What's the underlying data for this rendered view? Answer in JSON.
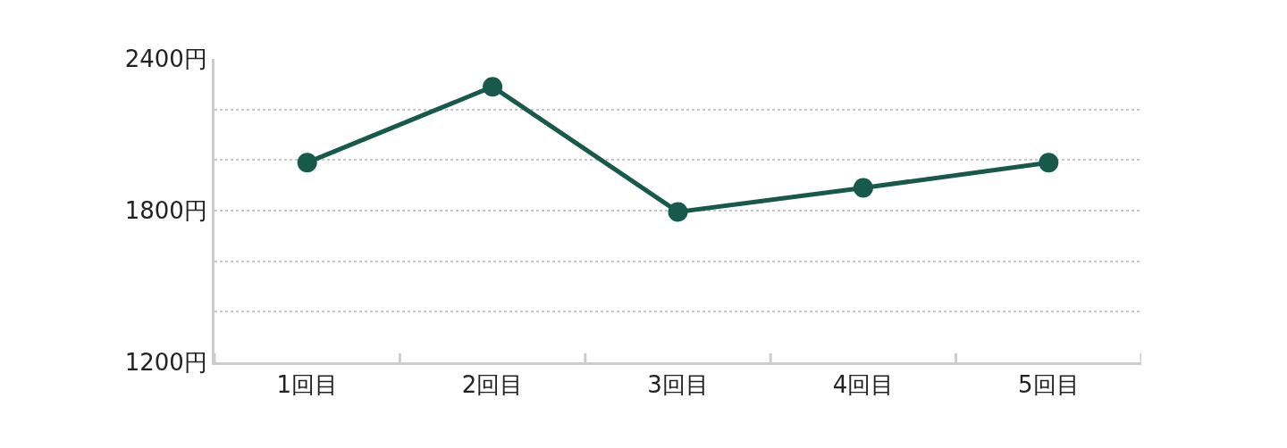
{
  "chart_data": {
    "type": "line",
    "categories": [
      "1回目",
      "2回目",
      "3回目",
      "4回目",
      "5回目"
    ],
    "series": [
      {
        "color": "#17594a",
        "values": [
          1990,
          2290,
          1795,
          1890,
          1990
        ]
      }
    ],
    "ylim": [
      1200,
      2400
    ],
    "yticks": [
      {
        "value": 1200,
        "label": "1200円"
      },
      {
        "value": 1400,
        "label": null
      },
      {
        "value": 1600,
        "label": null
      },
      {
        "value": 1800,
        "label": "1800円"
      },
      {
        "value": 2000,
        "label": null
      },
      {
        "value": 2200,
        "label": null
      },
      {
        "value": 2400,
        "label": "2400円"
      }
    ],
    "grid": "y",
    "marker": "circle",
    "line_style": "solid"
  }
}
